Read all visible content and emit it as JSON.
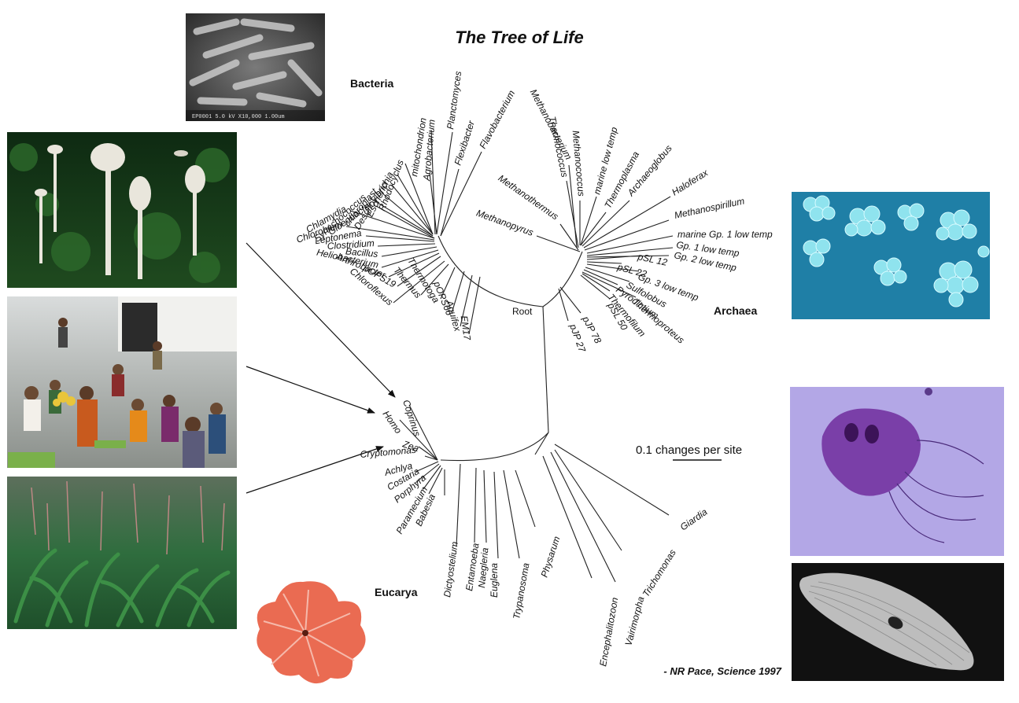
{
  "title": "The Tree of Life",
  "citation": "- NR Pace, Science 1997",
  "scale_bar_label": "0.1 changes per site",
  "root_label": "Root",
  "domains": [
    {
      "name": "Bacteria",
      "taxa": [
        "Flavobacterium",
        "Flexibacter",
        "Planctomyces",
        "Agrobacterium",
        "mitochondrion",
        "Rhodocyclus",
        "Escherichia",
        "Desulfovibrio",
        "chloroplast",
        "Synechococcus",
        "Gloeobacter",
        "Chlamydia",
        "Chlorobium",
        "Leptonema",
        "Clostridium",
        "Bacillus",
        "Heliobacterium",
        "Arthrobacter",
        "pOPS19",
        "Chloroflexus",
        "Thermus",
        "Thermotoga",
        "pOPS66",
        "Aquifex",
        "EM17"
      ]
    },
    {
      "name": "Archaea",
      "taxa": [
        "Methanopyrus",
        "Methanothermus",
        "Methanobacterium",
        "Thermococcus",
        "Methanococcus",
        "marine low temp",
        "Thermoplasma",
        "Archaeoglobus",
        "Haloferax",
        "Methanospirillum",
        "marine Gp. 1 low temp",
        "Gp. 1 low temp",
        "Gp. 2 low temp",
        "pSL 12",
        "pSL 22",
        "Gp. 3 low temp",
        "Sulfolobus",
        "Pyrodictium",
        "Thermoproteus",
        "Thermofilum",
        "pSL 50",
        "pJP 78",
        "pJP 27"
      ]
    },
    {
      "name": "Eucarya",
      "taxa": [
        "Coprinus",
        "Homo",
        "Zea",
        "Cryptomonas",
        "Achlya",
        "Costaria",
        "Porphyra",
        "Paramecium",
        "Babesia",
        "Dictyostelium",
        "Entamoeba",
        "Naegleria",
        "Euglena",
        "Trypanosoma",
        "Physarum",
        "Encephalitozoon",
        "Vairimorpha",
        "Trichomonas",
        "Giardia"
      ]
    }
  ],
  "photos": {
    "bacteria_sem": {
      "caption": "EP0001 5.0 kV X10,000 1.00um"
    }
  },
  "colors": {
    "line": "#222222",
    "archaea_photo_bg": "#1f7fa6",
    "archaea_cells": "#8fe3ee",
    "giardia_bg": "#b3a7e6",
    "giardia_cell": "#7a3fa8",
    "porphyra": "#e8664e"
  }
}
